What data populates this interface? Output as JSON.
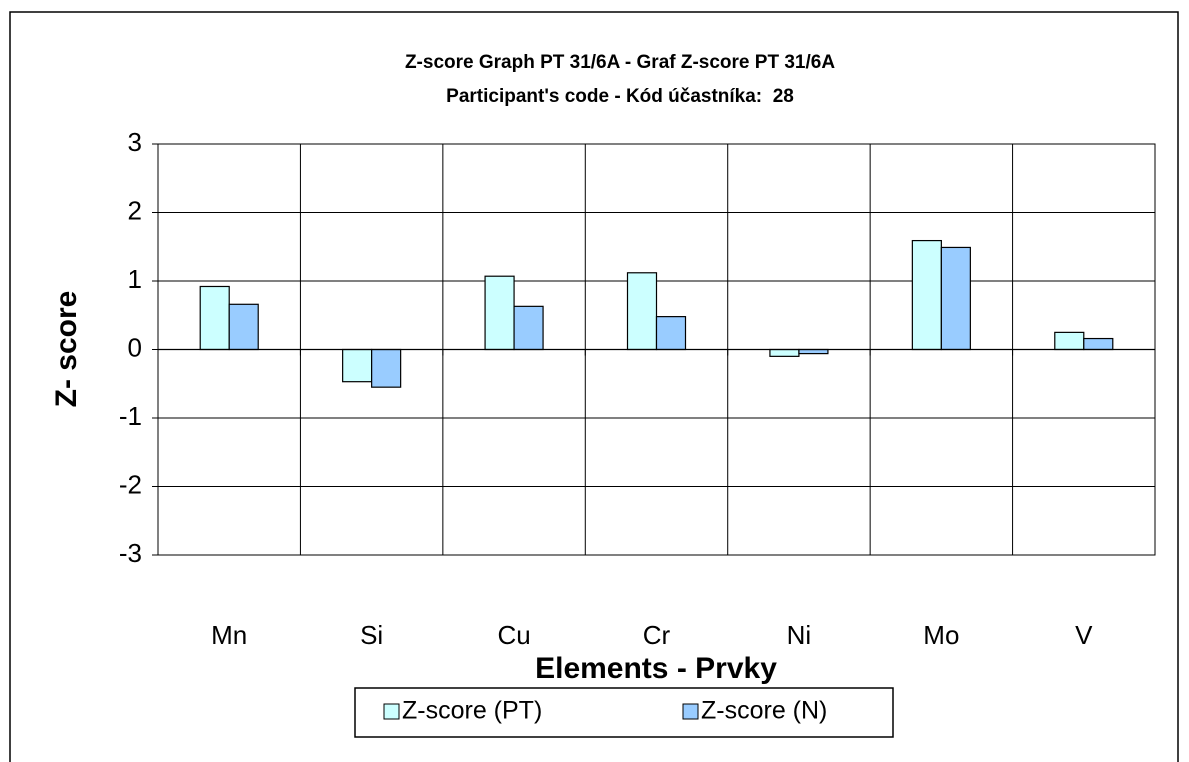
{
  "chart_data": {
    "type": "bar",
    "title": "Z-score Graph PT 31/6A - Graf Z-score PT 31/6A",
    "subtitle": "Participant's code - Kód účastníka:  28",
    "xlabel": "Elements - Prvky",
    "ylabel": "Z- score",
    "categories": [
      "Mn",
      "Si",
      "Cu",
      "Cr",
      "Ni",
      "Mo",
      "V"
    ],
    "series": [
      {
        "name": "Z-score (PT)",
        "color": "#ccffff",
        "values": [
          0.92,
          -0.47,
          1.07,
          1.12,
          -0.1,
          1.59,
          0.25
        ]
      },
      {
        "name": "Z-score (N)",
        "color": "#99ccff",
        "values": [
          0.66,
          -0.55,
          0.63,
          0.48,
          -0.06,
          1.49,
          0.16
        ]
      }
    ],
    "ylim": [
      -3,
      3
    ],
    "yticks": [
      -3,
      -2,
      -1,
      0,
      1,
      2,
      3
    ],
    "grid": true,
    "legend": "bottom"
  }
}
